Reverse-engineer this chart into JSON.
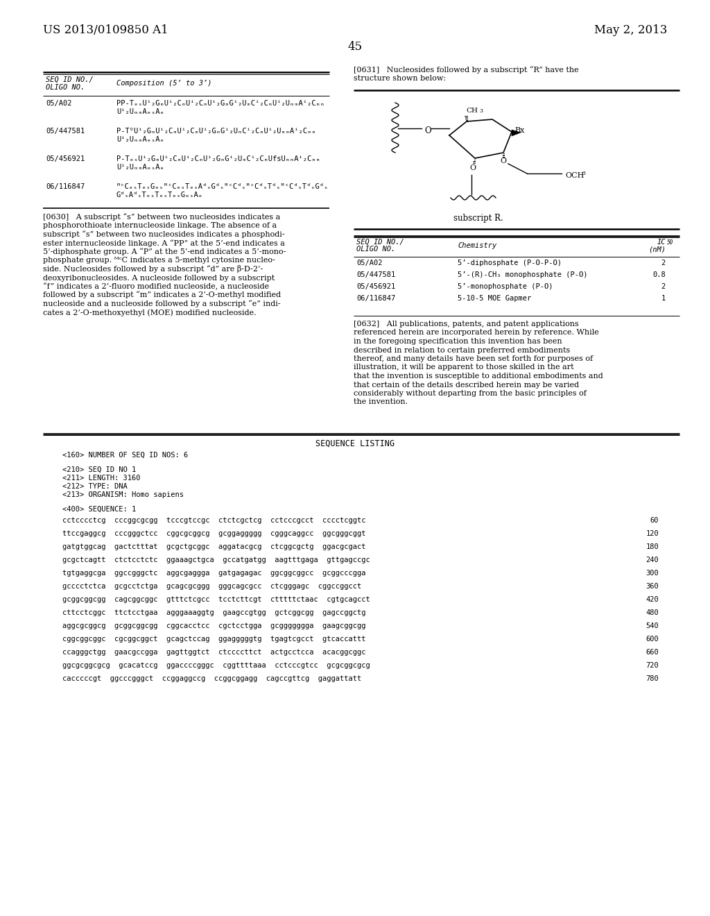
{
  "bg": "#ffffff",
  "header_left": "US 2013/0109850 A1",
  "header_right": "May 2, 2013",
  "page_number": "45",
  "left_table_col1_header": "SEQ ID NO./\nOLIGO NO.",
  "left_table_col2_header": "Composition (5’ to 3’)",
  "left_rows": [
    [
      "05/A02",
      "PP-TₑₛUⁱ₂GₘUⁱ₂CₘUⁱ₂CₘUⁱ₂GₘGⁱ₂UₘCⁱ₂CₘUⁱ₂UₘₘAⁱ₂Cₘₘ",
      "Uⁱ₂UₘₘAₑₛAₑ"
    ],
    [
      "05/447581",
      "P-TᴼUⁱ₂GₘUⁱ₂CₘUⁱ₂CₘUⁱ₂GₘGⁱ₂UₘCⁱ₂CₘUⁱ₂UₘₘAⁱ₂Cₘₘ",
      "Uⁱ₂UₘₘAₑₛAₑ"
    ],
    [
      "05/456921",
      "P-TₑₛUⁱ₂GₘUⁱ₂CₘUⁱ₂CₘUⁱ₂GₘGⁱ₂UₘCⁱ₂CₘUfsUₘₘAⁱ₂Cₘₘ",
      "Uⁱ₂UₘₘAₑₛAₑ"
    ],
    [
      "06/116847",
      "ᴹᶜCₑₛTₑₛGₑₛᴹᶜCₑₛTₑₛAᵈₛGᵈₛᴹᶜCᵈₛᴹᶜCᵈₛTᵈₛᴹᶜCᵈₛTᵈₛGᵈₛ",
      "GᵈₛAᵈₛTₑₛTₑₛTₑₛGₑₛAₑ"
    ]
  ],
  "para0630_lines": [
    "[0630]   A subscript “s” between two nucleosides indicates a",
    "phosphorothioate internucleoside linkage. The absence of a",
    "subscript “s” between two nucleosides indicates a phosphodi-",
    "ester internucleoside linkage. A “PP” at the 5’-end indicates a",
    "5’-diphosphate group. A “P” at the 5’-end indicates a 5’-mono-",
    "phosphate group. ᴹᶜC indicates a 5-methyl cytosine nucleo-",
    "side. Nucleosides followed by a subscript “d” are β-D-2’-",
    "deoxyribonucleosides. A nucleoside followed by a subscript",
    "“f” indicates a 2’-fluoro modified nucleoside, a nucleoside",
    "followed by a subscript “m” indicates a 2’-O-methyl modified",
    "nucleoside and a nucleoside followed by a subscript “e” indi-",
    "cates a 2’-O-methoxyethyl (MOE) modified nucleoside."
  ],
  "para0631_lines": [
    "[0631]   Nucleosides followed by a subscript “R” have the",
    "structure shown below:"
  ],
  "para0632_lines": [
    "[0632]   All publications, patents, and patent applications",
    "referenced herein are incorporated herein by reference. While",
    "in the foregoing specification this invention has been",
    "described in relation to certain preferred embodiments",
    "thereof, and many details have been set forth for purposes of",
    "illustration, it will be apparent to those skilled in the art",
    "that the invention is susceptible to additional embodiments and",
    "that certain of the details described herein may be varied",
    "considerably without departing from the basic principles of",
    "the invention."
  ],
  "right_rows": [
    [
      "05/A02",
      "5’-diphosphate (P-O-P-O)",
      "2"
    ],
    [
      "05/447581",
      "5’-(R)-CH₃ monophosphate (P-O)",
      "0.8"
    ],
    [
      "05/456921",
      "5’-monophosphate (P-O)",
      "2"
    ],
    [
      "06/116847",
      "5-10-5 MOE Gapmer",
      "1"
    ]
  ],
  "seq_header": "SEQUENCE LISTING",
  "seq_meta": [
    "<160> NUMBER OF SEQ ID NOS: 6",
    "",
    "<210> SEQ ID NO 1",
    "<211> LENGTH: 3160",
    "<212> TYPE: DNA",
    "<213> ORGANISM: Homo sapiens",
    "",
    "<400> SEQUENCE: 1"
  ],
  "seq_data": [
    [
      "cctcccctcg",
      "cccggcgcgg",
      "tcccgtccgc",
      "ctctcgctcg",
      "cctcccgcct",
      "cccctcggtc",
      "60"
    ],
    [
      "ttccgaggcg",
      "cccgggctcc",
      "cggcgcggcg",
      "gcggaggggg",
      "cgggcaggcc",
      "ggcgggcggt",
      "120"
    ],
    [
      "gatgtggcag",
      "gactctttat",
      "gcgctgcggc",
      "aggatacgcg",
      "ctcggcgctg",
      "ggacgcgact",
      "180"
    ],
    [
      "gcgctcagtt",
      "ctctcctctc",
      "ggaaagctgca",
      "gccatgatgg",
      "aagtttgaga",
      "gttgagccgc",
      "240"
    ],
    [
      "tgtgaggcga",
      "ggccgggctc",
      "aggcgaggga",
      "gatgagagac",
      "ggcggcggcc",
      "gcggcccgga",
      "300"
    ],
    [
      "gcccctctca",
      "gcgcctctga",
      "gcagcgcggg",
      "gggcagcgcc",
      "ctcgggagc",
      "cggccggcct",
      "360"
    ],
    [
      "gcggcggcgg",
      "cagcggcggc",
      "gtttctcgcc",
      "tcctcttcgt",
      "ctttttctaac",
      "cgtgcagcct",
      "420"
    ],
    [
      "cttcctcggc",
      "ttctcctgaa",
      "agggaaaggtg",
      "gaagccgtgg",
      "gctcggcgg",
      "gagccggctg",
      "480"
    ],
    [
      "aggcgcggcg",
      "gcggcggcgg",
      "cggcacctcc",
      "cgctcctgga",
      "gcggggggga",
      "gaagcggcgg",
      "540"
    ],
    [
      "cggcggcggc",
      "cgcggcggct",
      "gcagctccag",
      "ggagggggtg",
      "tgagtcgcct",
      "gtcaccattt",
      "600"
    ],
    [
      "ccagggctgg",
      "gaacgccgga",
      "gagttggtct",
      "ctccccttct",
      "actgcctcca",
      "acacggcggc",
      "660"
    ],
    [
      "ggcgcggcgcg",
      "gcacatccg",
      "ggaccccgggc",
      "cggttttaaa",
      "cctcccgtcc",
      "gcgcggcgcg",
      "720"
    ],
    [
      "cacccccgt",
      "ggcccgggct",
      "ccggaggccg",
      "ccggcggagg",
      "cagccgttcg",
      "gaggattatt",
      "780"
    ]
  ]
}
